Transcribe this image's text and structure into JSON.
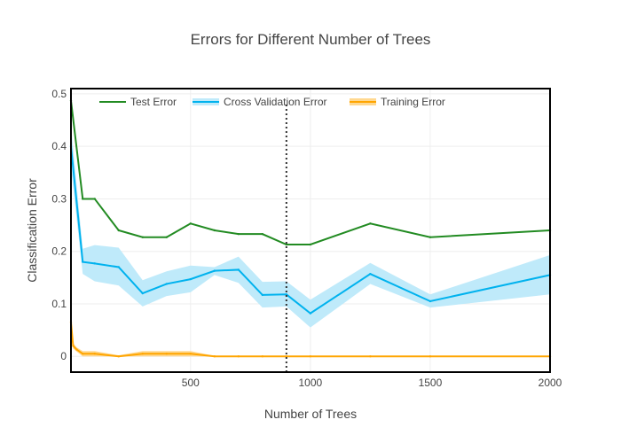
{
  "chart_data": {
    "type": "line",
    "title": "Errors for Different Number of Trees",
    "xlabel": "Number of Trees",
    "ylabel": "Classification Error",
    "xlim": [
      1,
      2000
    ],
    "ylim": [
      -0.03,
      0.51
    ],
    "x_ticks": [
      500,
      1000,
      1500,
      2000
    ],
    "x_tick_labels": [
      "500",
      "1000",
      "1500",
      "2000"
    ],
    "y_ticks": [
      0,
      0.1,
      0.2,
      0.3,
      0.4,
      0.5
    ],
    "y_tick_labels": [
      "0",
      "0.1",
      "0.2",
      "0.3",
      "0.4",
      "0.5"
    ],
    "grid": true,
    "legend_position": "top",
    "vertical_line_x": 900,
    "series": [
      {
        "name": "Test Error",
        "color": "#228b22",
        "x": [
          1,
          50,
          100,
          200,
          300,
          400,
          500,
          600,
          700,
          800,
          900,
          1000,
          1250,
          1500,
          2000
        ],
        "values": [
          0.487,
          0.3,
          0.3,
          0.24,
          0.227,
          0.227,
          0.253,
          0.24,
          0.233,
          0.233,
          0.213,
          0.213,
          0.253,
          0.227,
          0.24
        ]
      },
      {
        "name": "Cross Validation Error",
        "color": "#00b2ee",
        "band_color": "#bfeafa",
        "x": [
          1,
          50,
          100,
          200,
          300,
          400,
          500,
          600,
          700,
          800,
          900,
          1000,
          1250,
          1500,
          2000
        ],
        "values": [
          0.4,
          0.18,
          0.177,
          0.17,
          0.12,
          0.138,
          0.147,
          0.163,
          0.165,
          0.117,
          0.118,
          0.082,
          0.157,
          0.105,
          0.155
        ],
        "upper": [
          0.44,
          0.205,
          0.212,
          0.207,
          0.145,
          0.162,
          0.173,
          0.17,
          0.19,
          0.142,
          0.143,
          0.108,
          0.178,
          0.118,
          0.193
        ],
        "lower": [
          0.36,
          0.157,
          0.143,
          0.135,
          0.095,
          0.115,
          0.122,
          0.155,
          0.14,
          0.093,
          0.095,
          0.055,
          0.138,
          0.093,
          0.118
        ]
      },
      {
        "name": "Training Error",
        "color": "#ffa500",
        "band_color": "#ffd890",
        "x": [
          1,
          10,
          25,
          50,
          100,
          200,
          300,
          400,
          500,
          600,
          700,
          800,
          900,
          1000,
          1250,
          1500,
          2000
        ],
        "values": [
          0.065,
          0.02,
          0.013,
          0.005,
          0.005,
          0.0,
          0.005,
          0.005,
          0.005,
          0.0,
          0.0,
          0.0,
          0.0,
          0.0,
          0.0,
          0.0,
          0.0
        ],
        "upper": [
          0.07,
          0.025,
          0.017,
          0.01,
          0.01,
          0.002,
          0.01,
          0.01,
          0.01,
          0.001,
          0.001,
          0.001,
          0.001,
          0.001,
          0.001,
          0.001,
          0.001
        ],
        "lower": [
          0.06,
          0.015,
          0.009,
          0.0,
          0.0,
          0.0,
          0.0,
          0.0,
          0.0,
          0.0,
          0.0,
          0.0,
          0.0,
          0.0,
          0.0,
          0.0,
          0.0
        ]
      }
    ]
  }
}
